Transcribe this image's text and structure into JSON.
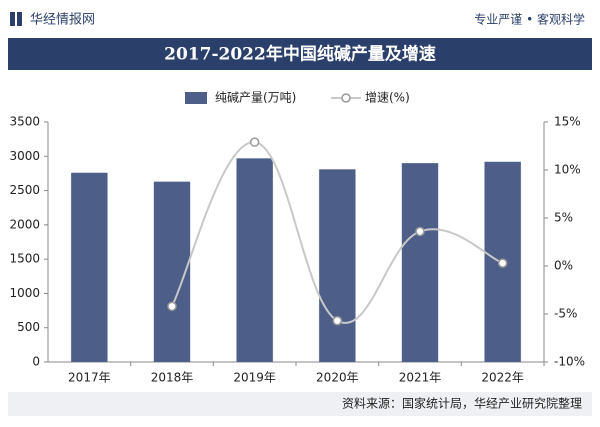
{
  "header": {
    "logo": "华经情报网",
    "slogan": "专业严谨 • 客观科学"
  },
  "chart_data": {
    "type": "bar",
    "title": "2017-2022年中国纯碱产量及增速",
    "categories": [
      "2017年",
      "2018年",
      "2019年",
      "2020年",
      "2021年",
      "2022年"
    ],
    "series": [
      {
        "name": "纯碱产量(万吨)",
        "type": "bar",
        "color": "#4d5e89",
        "values": [
          2760,
          2630,
          2970,
          2810,
          2900,
          2920
        ]
      },
      {
        "name": "增速(%)",
        "type": "line",
        "axis": "y2",
        "color": "#c8c8c8",
        "values": [
          null,
          -4.2,
          12.9,
          -5.7,
          3.6,
          0.3
        ]
      }
    ],
    "ylim": [
      0,
      3500
    ],
    "yticks": [
      0,
      500,
      1000,
      1500,
      2000,
      2500,
      3000,
      3500
    ],
    "y2lim": [
      -10,
      15
    ],
    "y2ticks": [
      {
        "value": -10,
        "label": "-10%"
      },
      {
        "value": -5,
        "label": "-5%"
      },
      {
        "value": 0,
        "label": "0%"
      },
      {
        "value": 5,
        "label": "5%"
      },
      {
        "value": 10,
        "label": "10%"
      },
      {
        "value": 15,
        "label": "15%"
      }
    ],
    "source": "资料来源：国家统计局，华经产业研究院整理"
  }
}
